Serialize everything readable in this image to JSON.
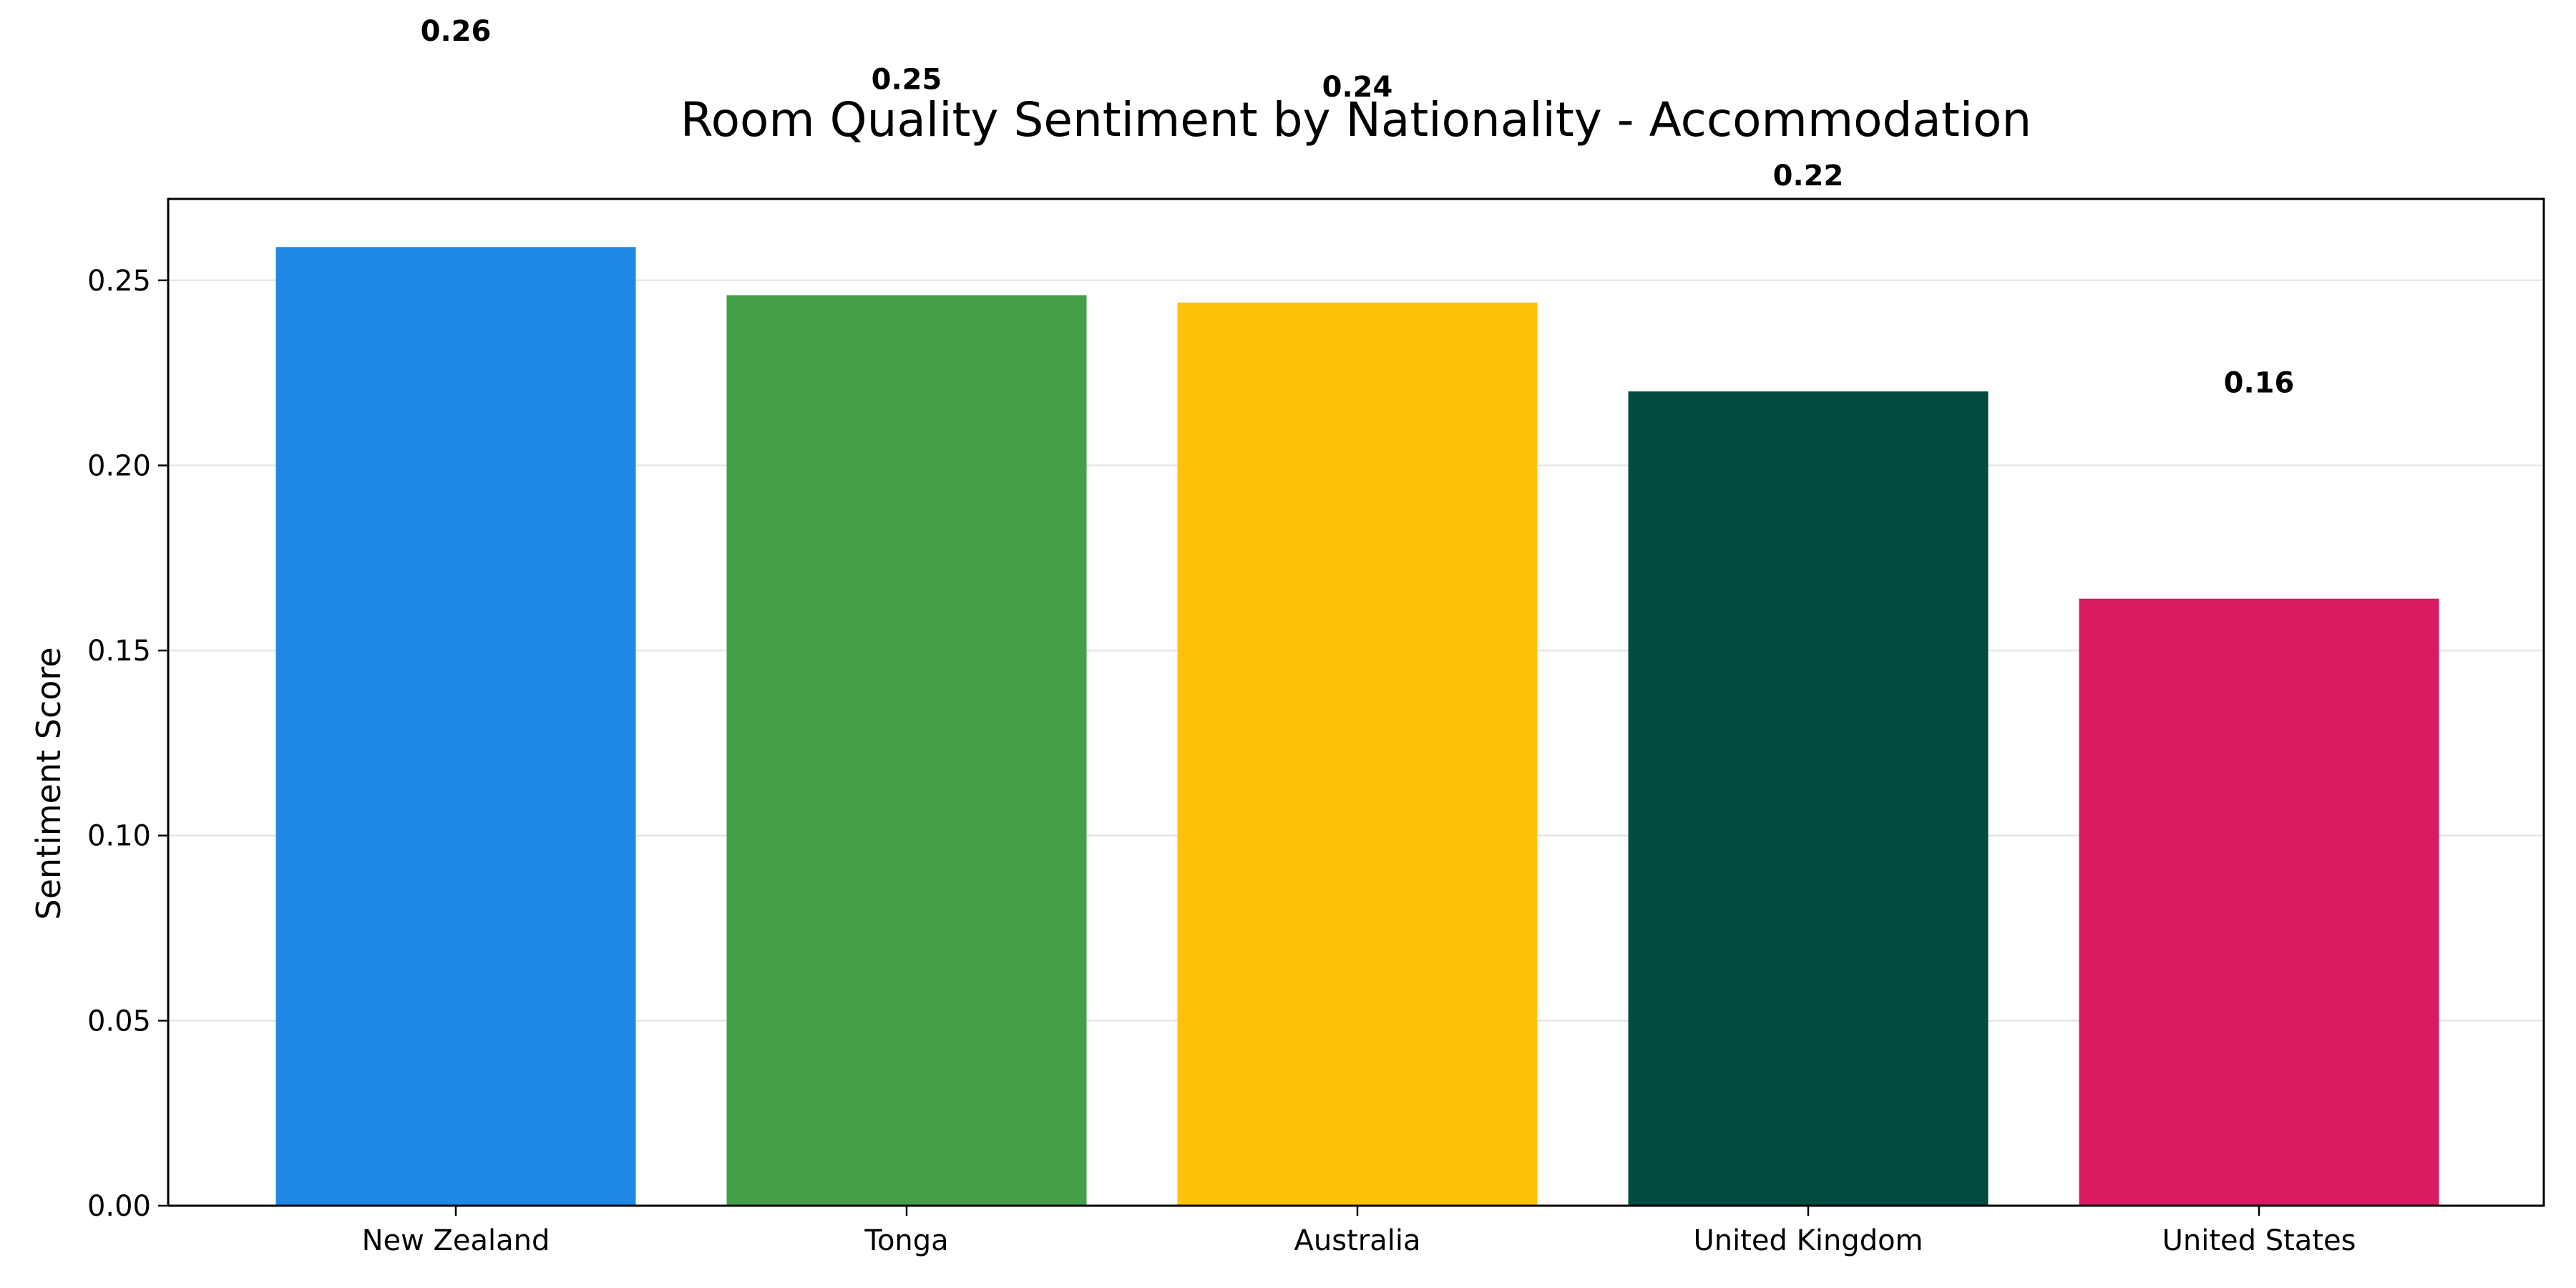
{
  "chart_data": {
    "type": "bar",
    "title": "Room Quality Sentiment by Nationality - Accommodation",
    "xlabel": "",
    "ylabel": "Sentiment Score",
    "categories": [
      "New Zealand",
      "Tonga",
      "Australia",
      "United Kingdom",
      "United States"
    ],
    "values": [
      0.259,
      0.246,
      0.244,
      0.22,
      0.164
    ],
    "data_labels": [
      "0.26",
      "0.25",
      "0.24",
      "0.22",
      "0.16"
    ],
    "colors": [
      "#1e88e5",
      "#43a047",
      "#ffc107",
      "#004d40",
      "#d81b60"
    ],
    "ylim": [
      0,
      0.272
    ],
    "yticks": [
      0.0,
      0.05,
      0.1,
      0.15,
      0.2,
      0.25
    ],
    "ytick_labels": [
      "0.00",
      "0.05",
      "0.10",
      "0.15",
      "0.20",
      "0.25"
    ],
    "grid": "y",
    "legend": "none"
  }
}
